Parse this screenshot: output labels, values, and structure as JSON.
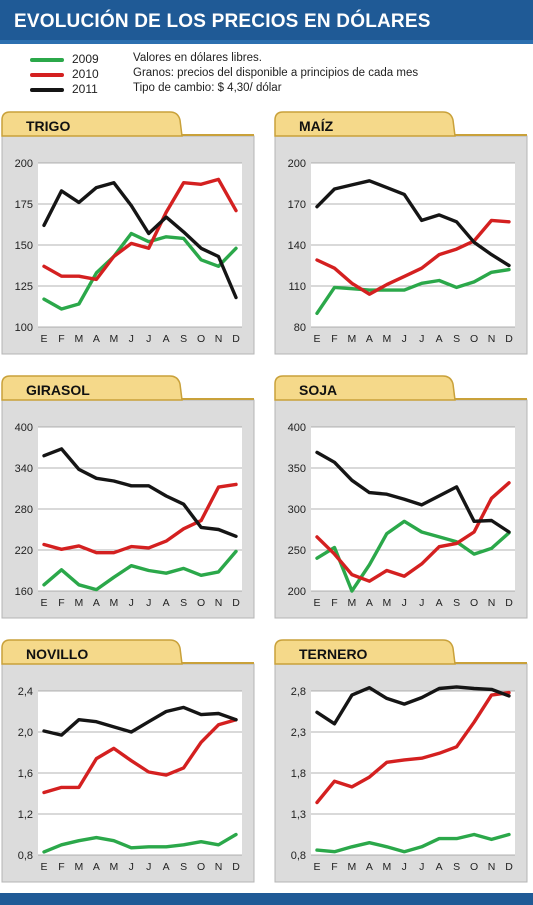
{
  "title": "EVOLUCIÓN DE LOS PRECIOS EN DÓLARES",
  "legend": [
    {
      "name": "2009",
      "color": "#2ba84a"
    },
    {
      "name": "2010",
      "color": "#d42020"
    },
    {
      "name": "2011",
      "color": "#151515"
    }
  ],
  "notes": [
    "Valores en dólares libres.",
    "Granos: precios del disponible a principios de cada mes",
    "Tipo de cambio: $ 4,30/ dólar"
  ],
  "chart_data": [
    {
      "type": "line",
      "title": "TRIGO",
      "x": [
        "E",
        "F",
        "M",
        "A",
        "M",
        "J",
        "J",
        "A",
        "S",
        "O",
        "N",
        "D"
      ],
      "ylim": [
        100,
        200
      ],
      "yticks": [
        "100",
        "125",
        "150",
        "175",
        "200"
      ],
      "series": [
        {
          "name": "2009",
          "values": [
            117,
            111,
            114,
            133,
            143,
            157,
            152,
            155,
            154,
            141,
            137,
            148
          ]
        },
        {
          "name": "2010",
          "values": [
            137,
            131,
            131,
            129,
            143,
            151,
            148,
            170,
            188,
            187,
            190,
            171
          ]
        },
        {
          "name": "2011",
          "values": [
            162,
            183,
            176,
            185,
            188,
            174,
            157,
            167,
            158,
            148,
            143,
            118
          ]
        }
      ]
    },
    {
      "type": "line",
      "title": "MAÍZ",
      "x": [
        "E",
        "F",
        "M",
        "A",
        "M",
        "J",
        "J",
        "A",
        "S",
        "O",
        "N",
        "D"
      ],
      "ylim": [
        80,
        200
      ],
      "yticks": [
        "80",
        "110",
        "140",
        "170",
        "200"
      ],
      "series": [
        {
          "name": "2009",
          "values": [
            90,
            109,
            108,
            107,
            107,
            107,
            112,
            114,
            109,
            113,
            120,
            122
          ]
        },
        {
          "name": "2010",
          "values": [
            129,
            123,
            112,
            104,
            111,
            117,
            123,
            133,
            137,
            143,
            158,
            157
          ]
        },
        {
          "name": "2011",
          "values": [
            168,
            181,
            184,
            187,
            182,
            177,
            158,
            162,
            157,
            142,
            133,
            125
          ]
        }
      ]
    },
    {
      "type": "line",
      "title": "GIRASOL",
      "x": [
        "E",
        "F",
        "M",
        "A",
        "M",
        "J",
        "J",
        "A",
        "S",
        "O",
        "N",
        "D"
      ],
      "ylim": [
        160,
        400
      ],
      "yticks": [
        "160",
        "220",
        "280",
        "340",
        "400"
      ],
      "series": [
        {
          "name": "2009",
          "values": [
            169,
            191,
            169,
            162,
            180,
            197,
            190,
            186,
            193,
            183,
            188,
            218
          ]
        },
        {
          "name": "2010",
          "values": [
            228,
            221,
            226,
            216,
            216,
            225,
            223,
            233,
            251,
            263,
            312,
            316
          ]
        },
        {
          "name": "2011",
          "values": [
            358,
            368,
            338,
            325,
            321,
            314,
            314,
            299,
            287,
            253,
            250,
            240
          ]
        }
      ]
    },
    {
      "type": "line",
      "title": "SOJA",
      "x": [
        "E",
        "F",
        "M",
        "A",
        "M",
        "J",
        "J",
        "A",
        "S",
        "O",
        "N",
        "D"
      ],
      "ylim": [
        200,
        400
      ],
      "yticks": [
        "200",
        "250",
        "300",
        "350",
        "400"
      ],
      "series": [
        {
          "name": "2009",
          "values": [
            240,
            253,
            200,
            232,
            270,
            285,
            272,
            266,
            260,
            245,
            252,
            271
          ]
        },
        {
          "name": "2010",
          "values": [
            266,
            245,
            220,
            212,
            225,
            218,
            233,
            254,
            258,
            272,
            313,
            332
          ]
        },
        {
          "name": "2011",
          "values": [
            369,
            357,
            335,
            320,
            318,
            312,
            305,
            316,
            327,
            285,
            286,
            272
          ]
        }
      ]
    },
    {
      "type": "line",
      "title": "NOVILLO",
      "x": [
        "E",
        "F",
        "M",
        "A",
        "M",
        "J",
        "J",
        "A",
        "S",
        "O",
        "N",
        "D"
      ],
      "ylim": [
        0.8,
        2.4
      ],
      "yticks": [
        "0,8",
        "1,2",
        "1,6",
        "2,0",
        "2,4"
      ],
      "series": [
        {
          "name": "2009",
          "values": [
            0.83,
            0.9,
            0.94,
            0.97,
            0.94,
            0.87,
            0.88,
            0.88,
            0.9,
            0.93,
            0.9,
            1.0
          ]
        },
        {
          "name": "2010",
          "values": [
            1.41,
            1.46,
            1.46,
            1.74,
            1.84,
            1.72,
            1.61,
            1.58,
            1.65,
            1.9,
            2.07,
            2.12
          ]
        },
        {
          "name": "2011",
          "values": [
            2.01,
            1.97,
            2.12,
            2.1,
            2.05,
            2.0,
            2.1,
            2.2,
            2.24,
            2.17,
            2.18,
            2.12
          ]
        }
      ]
    },
    {
      "type": "line",
      "title": "TERNERO",
      "x": [
        "E",
        "F",
        "M",
        "A",
        "M",
        "J",
        "J",
        "A",
        "S",
        "O",
        "N",
        "D"
      ],
      "ylim": [
        0.8,
        2.8
      ],
      "yticks": [
        "0,8",
        "1,3",
        "1,8",
        "2,3",
        "2,8"
      ],
      "series": [
        {
          "name": "2009",
          "values": [
            0.86,
            0.84,
            0.9,
            0.95,
            0.9,
            0.84,
            0.9,
            1.0,
            1.0,
            1.05,
            0.99,
            1.05
          ]
        },
        {
          "name": "2010",
          "values": [
            1.44,
            1.7,
            1.63,
            1.75,
            1.93,
            1.96,
            1.98,
            2.04,
            2.12,
            2.42,
            2.75,
            2.78
          ]
        },
        {
          "name": "2011",
          "values": [
            2.54,
            2.4,
            2.75,
            2.84,
            2.71,
            2.64,
            2.72,
            2.83,
            2.85,
            2.83,
            2.82,
            2.74
          ]
        }
      ]
    }
  ]
}
